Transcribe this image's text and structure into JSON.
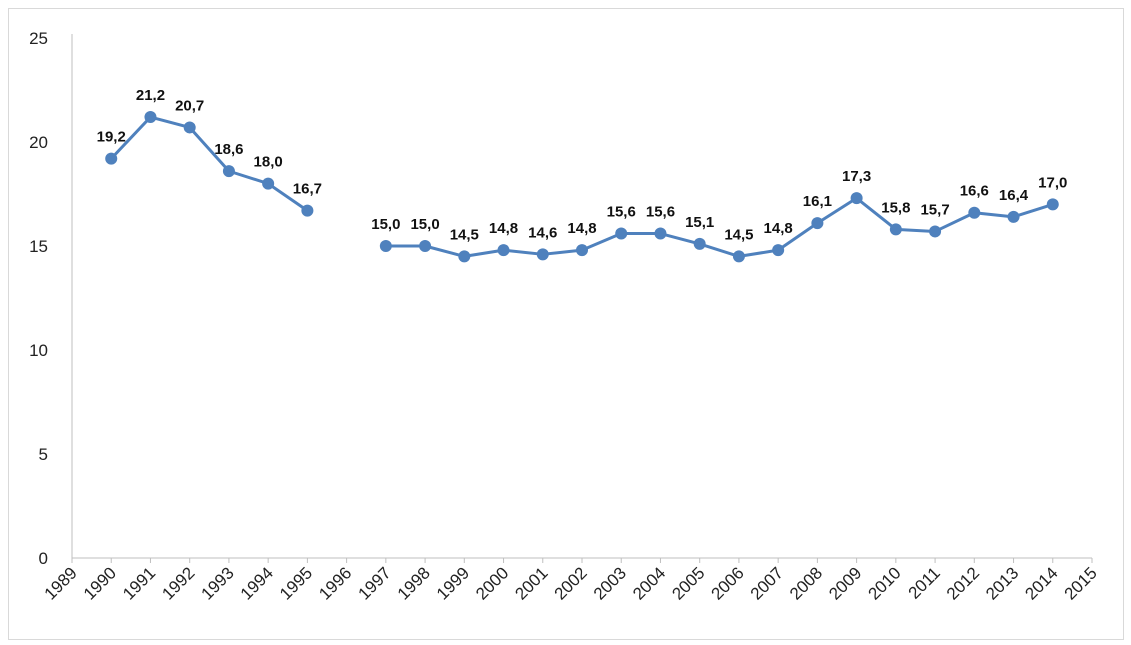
{
  "chart_data": {
    "type": "line",
    "title": "",
    "xlabel": "",
    "ylabel": "",
    "ylim": [
      0,
      25
    ],
    "yticks": [
      "0",
      "5",
      "10",
      "15",
      "20",
      "25"
    ],
    "categories": [
      "1989",
      "1990",
      "1991",
      "1992",
      "1993",
      "1994",
      "1995",
      "1996",
      "1997",
      "1998",
      "1999",
      "2000",
      "2001",
      "2002",
      "2003",
      "2004",
      "2005",
      "2006",
      "2007",
      "2008",
      "2009",
      "2010",
      "2011",
      "2012",
      "2013",
      "2014",
      "2015"
    ],
    "series": [
      {
        "values": [
          null,
          19.2,
          21.2,
          20.7,
          18.6,
          18.0,
          16.7,
          null,
          15.0,
          15.0,
          14.5,
          14.8,
          14.6,
          14.8,
          15.6,
          15.6,
          15.1,
          14.5,
          14.8,
          16.1,
          17.3,
          15.8,
          15.7,
          16.6,
          16.4,
          17.0,
          null
        ],
        "labels": [
          null,
          "19,2",
          "21,2",
          "20,7",
          "18,6",
          "18,0",
          "16,7",
          null,
          "15,0",
          "15,0",
          "14,5",
          "14,8",
          "14,6",
          "14,8",
          "15,6",
          "15,6",
          "15,1",
          "14,5",
          "14,8",
          "16,1",
          "17,3",
          "15,8",
          "15,7",
          "16,6",
          "16,4",
          "17,0",
          null
        ]
      }
    ],
    "grid": false,
    "legend": "none",
    "colors": {
      "line": "#4f81bd",
      "marker": "#4f81bd",
      "axis": "#bfbfbf"
    }
  }
}
